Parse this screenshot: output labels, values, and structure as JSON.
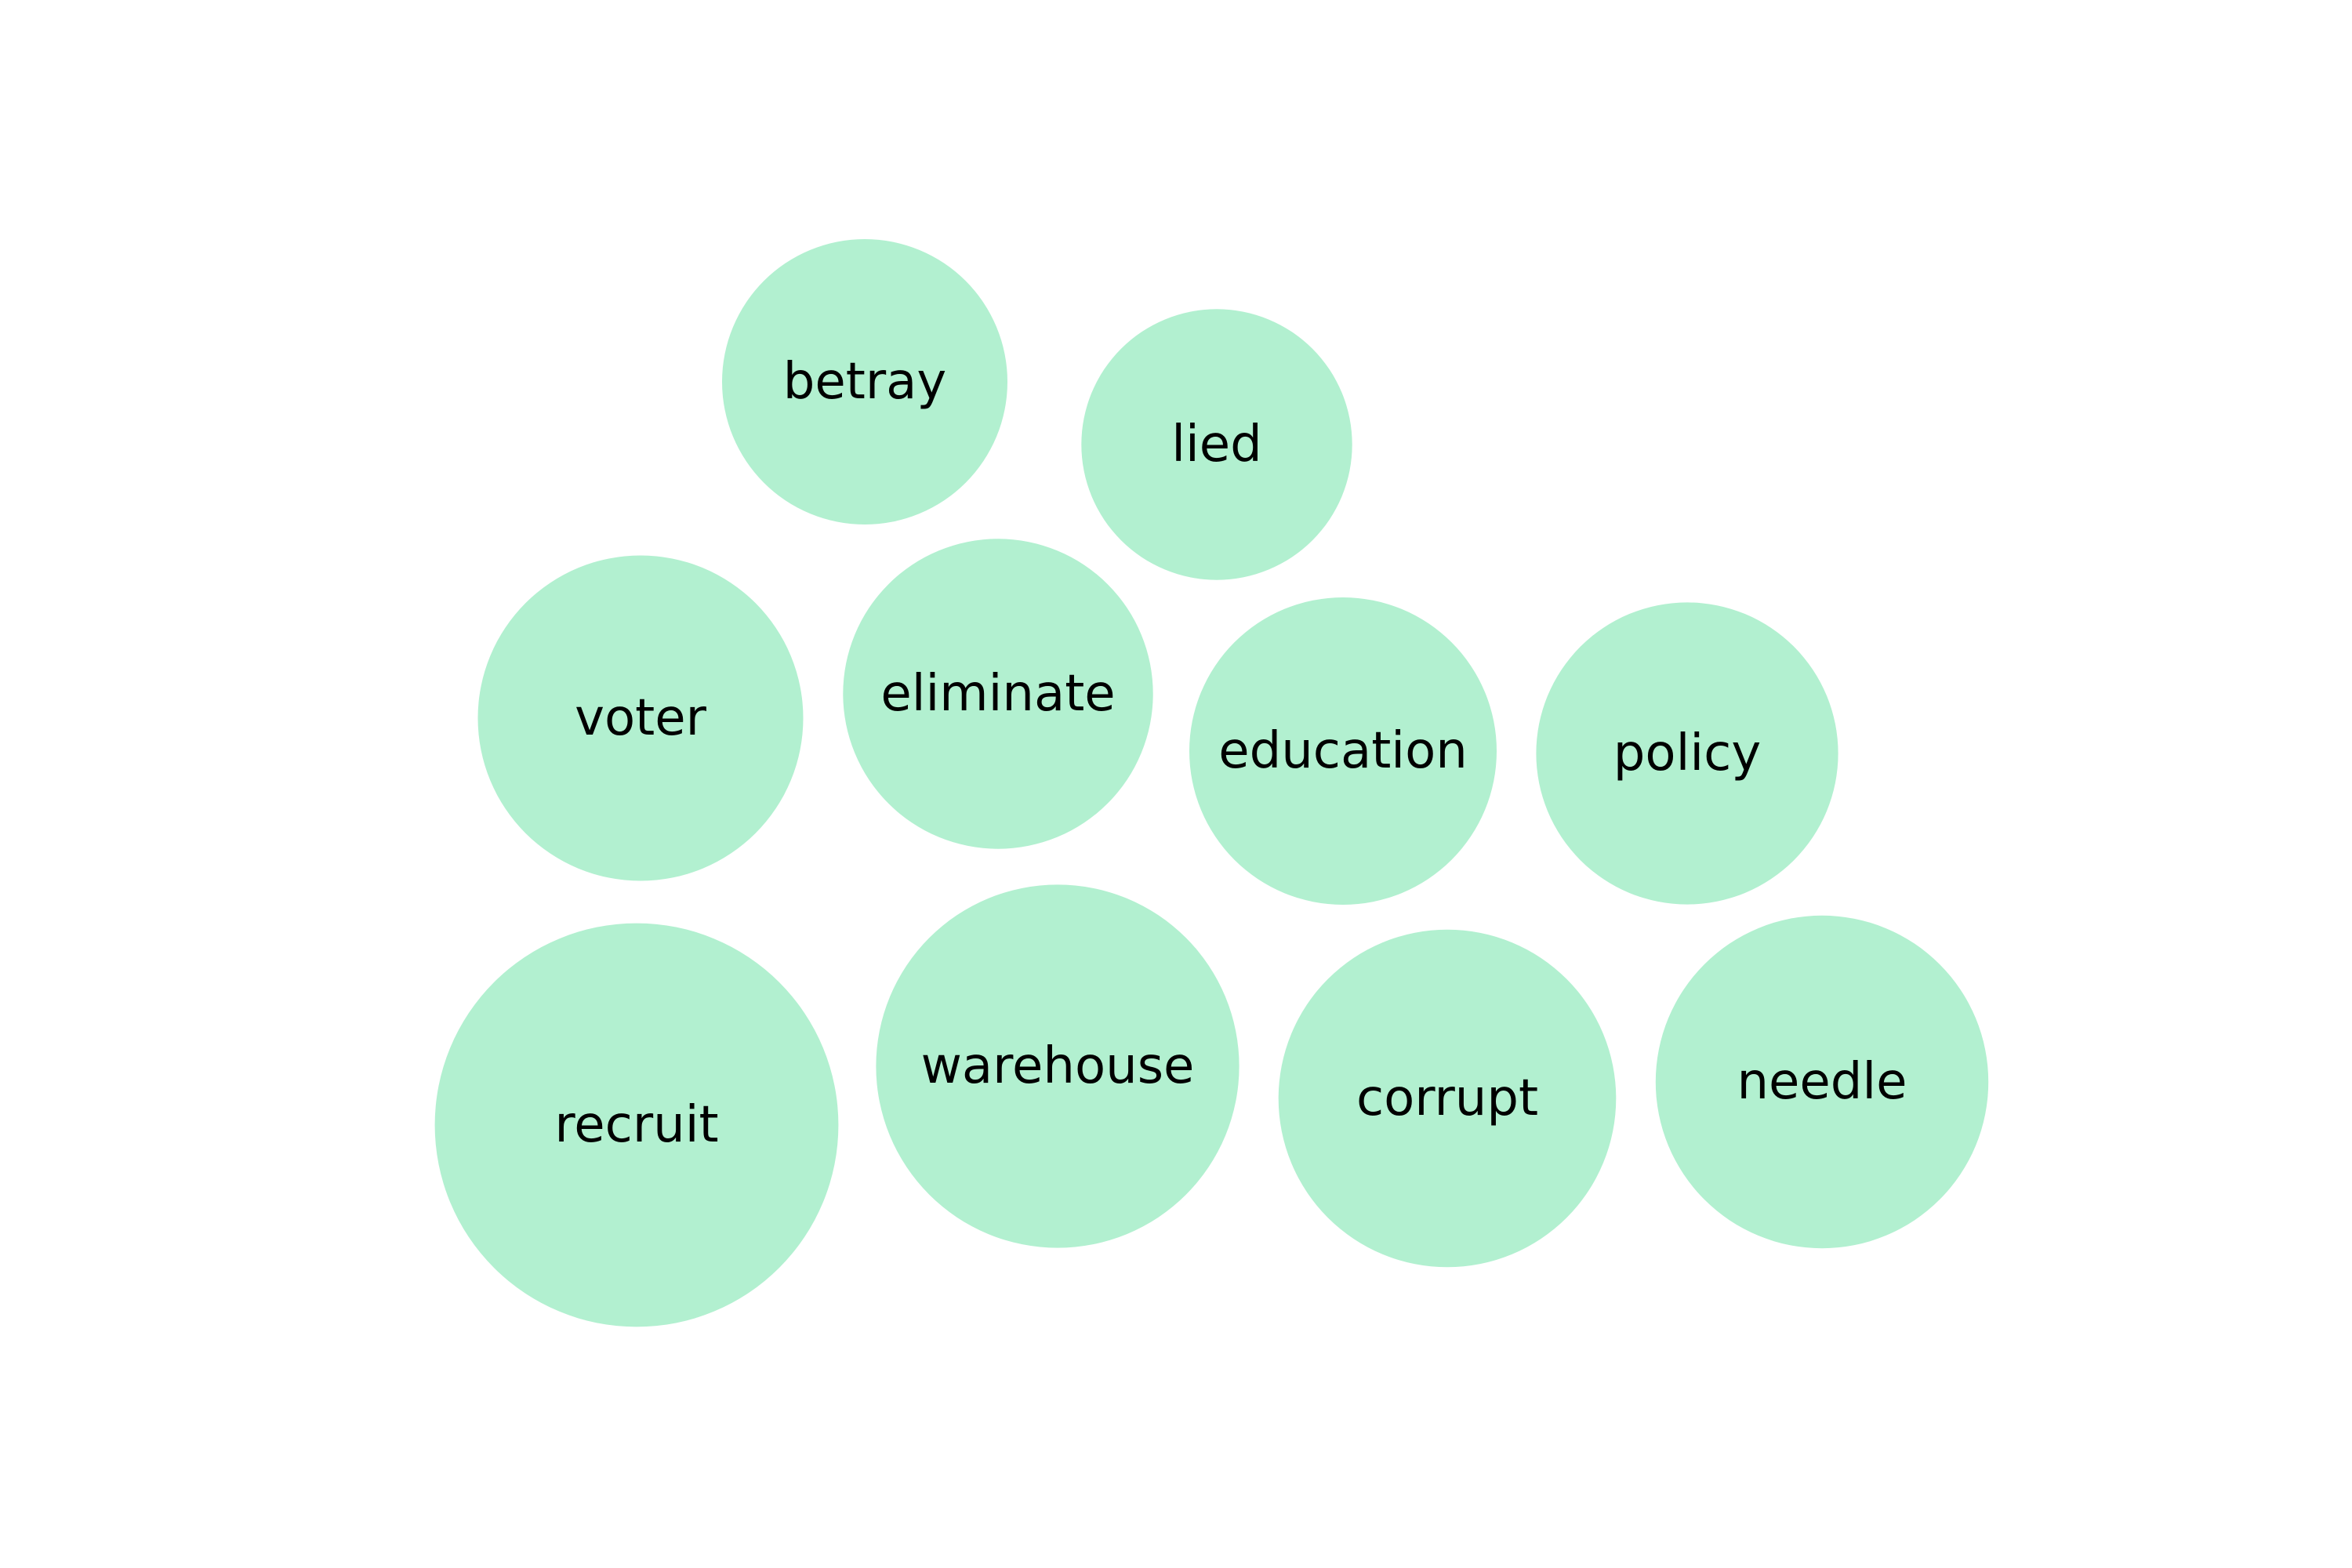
{
  "chart_data": {
    "type": "bubble",
    "title": "",
    "bubble_color": "#b2f0d0",
    "label_color": "#000000",
    "bubbles": [
      {
        "label": "betray",
        "size": 1.0
      },
      {
        "label": "lied",
        "size": 0.9
      },
      {
        "label": "voter",
        "size": 1.3
      },
      {
        "label": "eliminate",
        "size": 1.18
      },
      {
        "label": "education",
        "size": 1.16
      },
      {
        "label": "policy",
        "size": 1.12
      },
      {
        "label": "recruit",
        "size": 2.0
      },
      {
        "label": "warehouse",
        "size": 1.62
      },
      {
        "label": "corrupt",
        "size": 1.4
      },
      {
        "label": "needle",
        "size": 1.36
      }
    ]
  }
}
